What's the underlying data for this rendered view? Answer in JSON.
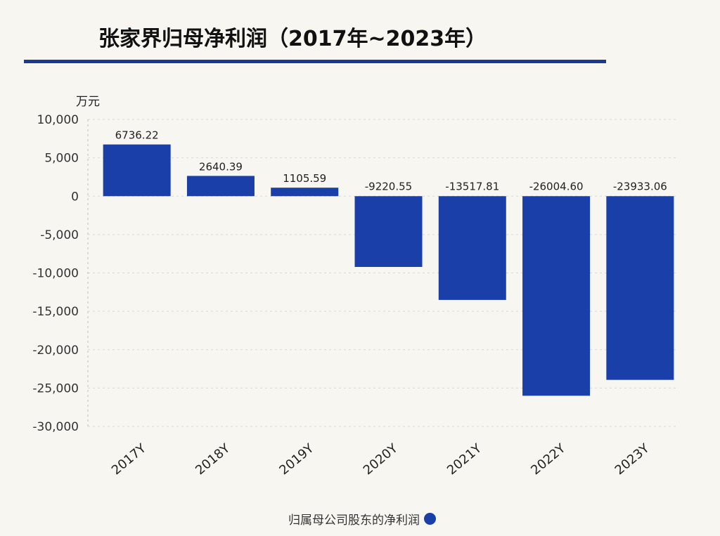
{
  "header": {
    "title": "张家界归母净利润（2017年~2023年）"
  },
  "colors": {
    "bar": "#1a3fa8",
    "title_rule": "#1b3a8f",
    "grid": "#d8d8d8",
    "axis": "#333333"
  },
  "chart_data": {
    "type": "bar",
    "title": "张家界归母净利润（2017年~2023年）",
    "ylabel": "万元",
    "xlabel": "",
    "categories": [
      "2017Y",
      "2018Y",
      "2019Y",
      "2020Y",
      "2021Y",
      "2022Y",
      "2023Y"
    ],
    "series": [
      {
        "name": "归属母公司股东的净利润",
        "values": [
          6736.22,
          2640.39,
          1105.59,
          -9220.55,
          -13517.81,
          -26004.6,
          -23933.06
        ],
        "labels": [
          "6736.22",
          "2640.39",
          "1105.59",
          "-9220.55",
          "-13517.81",
          "-26004.60",
          "-23933.06"
        ]
      }
    ],
    "ylim": [
      -30000,
      10000
    ],
    "yticks": [
      10000,
      5000,
      0,
      -5000,
      -10000,
      -15000,
      -20000,
      -25000,
      -30000
    ],
    "ytick_labels": [
      "10,000",
      "5,000",
      "0",
      "-5,000",
      "-10,000",
      "-15,000",
      "-20,000",
      "-25,000",
      "-30,000"
    ],
    "grid": true,
    "legend_position": "bottom-center"
  }
}
